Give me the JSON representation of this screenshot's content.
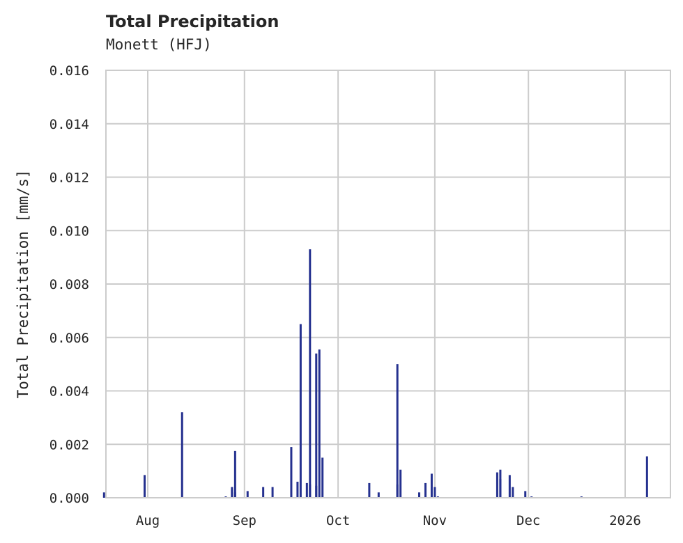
{
  "chart_data": {
    "type": "bar",
    "title": "Total Precipitation",
    "subtitle": "Monett (HFJ)",
    "xlabel": "",
    "ylabel": "Total Precipitation [mm/s]",
    "ylim": [
      0,
      0.016
    ],
    "yticks": [
      "0.000",
      "0.002",
      "0.004",
      "0.006",
      "0.008",
      "0.010",
      "0.012",
      "0.014",
      "0.016"
    ],
    "xticks": [
      "Aug",
      "Sep",
      "Oct",
      "Nov",
      "Dec",
      "2026"
    ],
    "grid": true,
    "legend": null,
    "bar_color": "#25318f",
    "series": [
      {
        "name": "Total Precipitation",
        "points": [
          {
            "x": "2025-07-18",
            "y": 0.0002
          },
          {
            "x": "2025-07-31",
            "y": 0.00085
          },
          {
            "x": "2025-08-12",
            "y": 0.0032
          },
          {
            "x": "2025-08-26",
            "y": 5e-05
          },
          {
            "x": "2025-08-28",
            "y": 0.0003
          },
          {
            "x": "2025-08-28",
            "y": 0.0004
          },
          {
            "x": "2025-08-29",
            "y": 0.00175
          },
          {
            "x": "2025-08-29",
            "y": 0.0002
          },
          {
            "x": "2025-09-02",
            "y": 0.00025
          },
          {
            "x": "2025-09-07",
            "y": 0.0004
          },
          {
            "x": "2025-09-10",
            "y": 0.0004
          },
          {
            "x": "2025-09-16",
            "y": 0.0019
          },
          {
            "x": "2025-09-18",
            "y": 0.0006
          },
          {
            "x": "2025-09-19",
            "y": 0.0065
          },
          {
            "x": "2025-09-21",
            "y": 0.00055
          },
          {
            "x": "2025-09-22",
            "y": 0.0093
          },
          {
            "x": "2025-09-22",
            "y": 0.0005
          },
          {
            "x": "2025-09-24",
            "y": 0.00045
          },
          {
            "x": "2025-09-24",
            "y": 0.0054
          },
          {
            "x": "2025-09-25",
            "y": 0.00555
          },
          {
            "x": "2025-09-26",
            "y": 0.0015
          },
          {
            "x": "2025-10-11",
            "y": 0.00055
          },
          {
            "x": "2025-10-14",
            "y": 0.0002
          },
          {
            "x": "2025-10-20",
            "y": 0.0005
          },
          {
            "x": "2025-10-20",
            "y": 0.005
          },
          {
            "x": "2025-10-21",
            "y": 0.00105
          },
          {
            "x": "2025-10-27",
            "y": 0.0002
          },
          {
            "x": "2025-10-29",
            "y": 0.00055
          },
          {
            "x": "2025-10-31",
            "y": 0.0009
          },
          {
            "x": "2025-11-01",
            "y": 0.0004
          },
          {
            "x": "2025-11-02",
            "y": 5e-05
          },
          {
            "x": "2025-11-21",
            "y": 0.00095
          },
          {
            "x": "2025-11-22",
            "y": 0.00105
          },
          {
            "x": "2025-11-22",
            "y": 0.0007
          },
          {
            "x": "2025-11-25",
            "y": 0.00085
          },
          {
            "x": "2025-11-26",
            "y": 0.0004
          },
          {
            "x": "2025-11-30",
            "y": 0.00025
          },
          {
            "x": "2025-12-02",
            "y": 5e-05
          },
          {
            "x": "2025-12-18",
            "y": 5e-05
          },
          {
            "x": "2026-01-08",
            "y": 0.00155
          }
        ]
      }
    ]
  }
}
